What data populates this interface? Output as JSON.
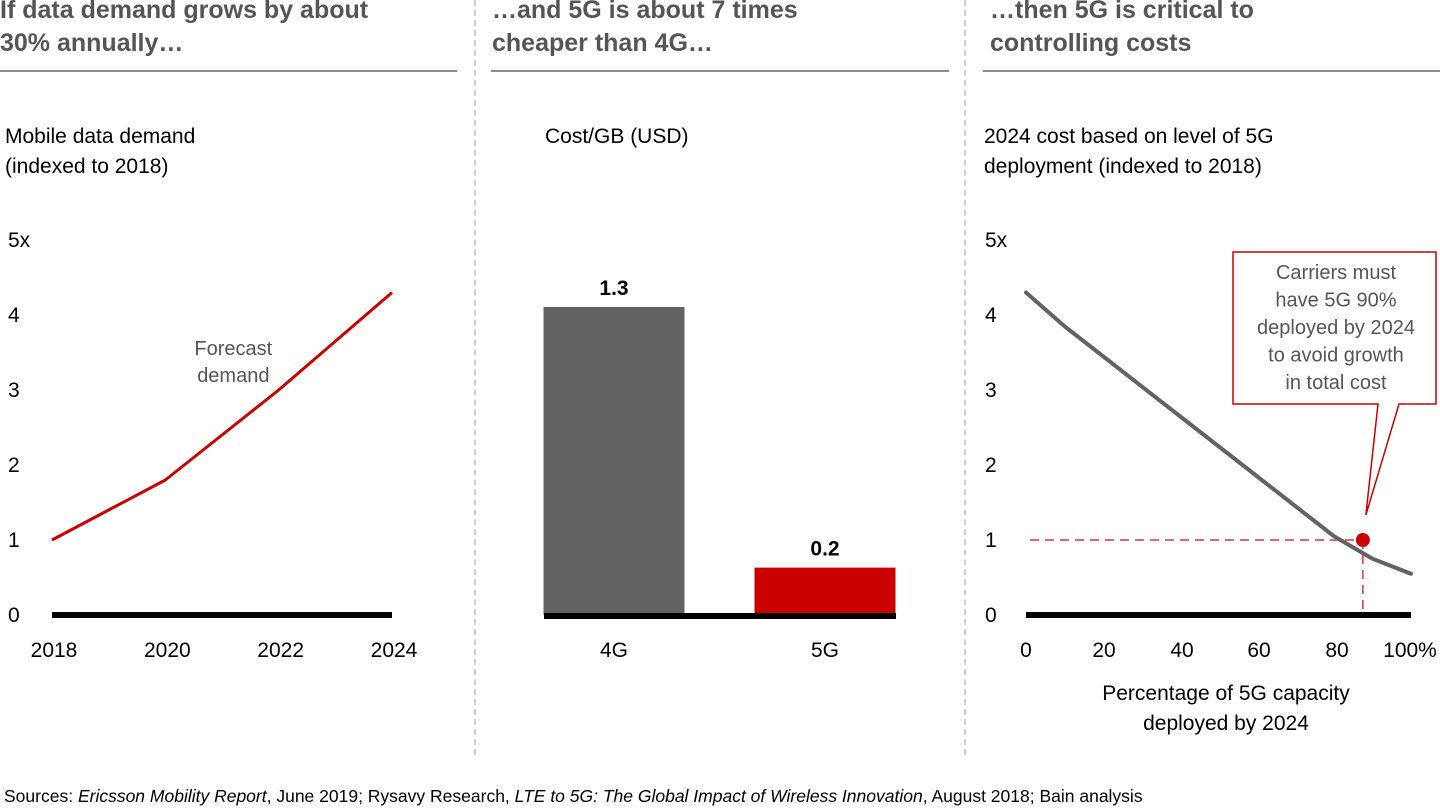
{
  "panels": [
    {
      "title": "If data demand grows by about\n30% annually…",
      "subtitle": "Mobile data demand\n(indexed to 2018)"
    },
    {
      "title": "…and 5G is about 7 times\ncheaper than 4G…",
      "subtitle": "Cost/GB (USD)"
    },
    {
      "title": "…then 5G is critical to\ncontrolling costs",
      "subtitle": "2024 cost based on level of 5G\ndeployment (indexed to 2018)"
    }
  ],
  "colors": {
    "red": "#cc0000",
    "dark_gray": "#636363",
    "title_gray": "#555555",
    "axis": "#000000"
  },
  "sources": {
    "prefix": "Sources: ",
    "parts": [
      {
        "text": "Ericsson Mobility Report",
        "italic": true
      },
      {
        "text": ", June 2019; Rysavy Research, ",
        "italic": false
      },
      {
        "text": "LTE to 5G: The Global Impact of Wireless Innovation",
        "italic": true
      },
      {
        "text": ", August 2018; Bain analysis",
        "italic": false
      }
    ]
  },
  "chart_data": [
    {
      "type": "line",
      "title": "Mobile data demand (indexed to 2018)",
      "xlabel": "",
      "ylabel": "",
      "x": [
        2018,
        2019,
        2020,
        2021,
        2022,
        2023,
        2024
      ],
      "series": [
        {
          "name": "Forecast demand",
          "color": "#cc0000",
          "values": [
            1.0,
            1.4,
            1.8,
            2.4,
            3.0,
            3.65,
            4.3
          ]
        }
      ],
      "xticks": [
        "2018",
        "2020",
        "2022",
        "2024"
      ],
      "xtick_values": [
        2018,
        2020,
        2022,
        2024
      ],
      "yticks": [
        "0",
        "1",
        "2",
        "3",
        "4",
        "5x"
      ],
      "ytick_values": [
        0,
        1,
        2,
        3,
        4,
        5
      ],
      "xlim": [
        2018,
        2024
      ],
      "ylim": [
        0,
        5
      ],
      "annotations": [
        {
          "text": "Forecast\ndemand",
          "x": 2021.2,
          "y": 3.2
        }
      ],
      "grid": false
    },
    {
      "type": "bar",
      "title": "Cost/GB (USD)",
      "categories": [
        "4G",
        "5G"
      ],
      "values": [
        1.3,
        0.2
      ],
      "value_labels": [
        "1.3",
        "0.2"
      ],
      "colors": [
        "#636363",
        "#cc0000"
      ],
      "ylim": [
        0,
        1.45
      ],
      "grid": false
    },
    {
      "type": "line",
      "title": "2024 cost based on level of 5G deployment (indexed to 2018)",
      "xlabel": "Percentage of 5G capacity\ndeployed by 2024",
      "ylabel": "",
      "x": [
        0,
        10,
        20,
        30,
        40,
        50,
        60,
        70,
        80,
        90,
        100
      ],
      "series": [
        {
          "name": "2024 cost",
          "color": "#636363",
          "values": [
            4.3,
            3.85,
            3.45,
            3.05,
            2.65,
            2.25,
            1.85,
            1.45,
            1.05,
            0.75,
            0.55
          ]
        }
      ],
      "xticks": [
        "0",
        "20",
        "40",
        "60",
        "80",
        "100%"
      ],
      "xtick_values": [
        0,
        20,
        40,
        60,
        80,
        100
      ],
      "yticks": [
        "0",
        "1",
        "2",
        "3",
        "4",
        "5x"
      ],
      "ytick_values": [
        0,
        1,
        2,
        3,
        4,
        5
      ],
      "xlim": [
        0,
        100
      ],
      "ylim": [
        0,
        5
      ],
      "highlight_point": {
        "x": 87.5,
        "y": 1.0,
        "color": "#cc0000"
      },
      "callout": "Carriers must\nhave 5G 90%\ndeployed by 2024\nto avoid growth\nin total cost",
      "grid": false
    }
  ]
}
